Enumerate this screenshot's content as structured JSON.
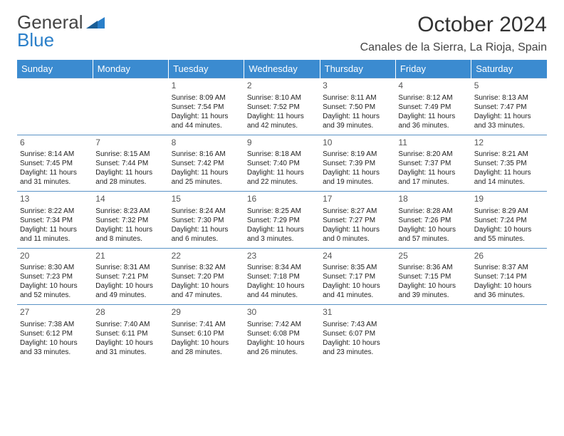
{
  "logo": {
    "line1": "General",
    "line2": "Blue"
  },
  "title": "October 2024",
  "location": "Canales de la Sierra, La Rioja, Spain",
  "colors": {
    "header_bg": "#3b8bd0",
    "header_text": "#ffffff",
    "row_border": "#5a93c6",
    "logo_blue": "#2a7fc9",
    "text": "#222222",
    "daynum": "#555555",
    "background": "#ffffff"
  },
  "fonts": {
    "title_size": 30,
    "location_size": 16,
    "header_size": 13,
    "cell_size": 10,
    "daynum_size": 12
  },
  "day_headers": [
    "Sunday",
    "Monday",
    "Tuesday",
    "Wednesday",
    "Thursday",
    "Friday",
    "Saturday"
  ],
  "weeks": [
    [
      {
        "day": "",
        "sunrise": "",
        "sunset": "",
        "daylight": ""
      },
      {
        "day": "",
        "sunrise": "",
        "sunset": "",
        "daylight": ""
      },
      {
        "day": "1",
        "sunrise": "Sunrise: 8:09 AM",
        "sunset": "Sunset: 7:54 PM",
        "daylight": "Daylight: 11 hours and 44 minutes."
      },
      {
        "day": "2",
        "sunrise": "Sunrise: 8:10 AM",
        "sunset": "Sunset: 7:52 PM",
        "daylight": "Daylight: 11 hours and 42 minutes."
      },
      {
        "day": "3",
        "sunrise": "Sunrise: 8:11 AM",
        "sunset": "Sunset: 7:50 PM",
        "daylight": "Daylight: 11 hours and 39 minutes."
      },
      {
        "day": "4",
        "sunrise": "Sunrise: 8:12 AM",
        "sunset": "Sunset: 7:49 PM",
        "daylight": "Daylight: 11 hours and 36 minutes."
      },
      {
        "day": "5",
        "sunrise": "Sunrise: 8:13 AM",
        "sunset": "Sunset: 7:47 PM",
        "daylight": "Daylight: 11 hours and 33 minutes."
      }
    ],
    [
      {
        "day": "6",
        "sunrise": "Sunrise: 8:14 AM",
        "sunset": "Sunset: 7:45 PM",
        "daylight": "Daylight: 11 hours and 31 minutes."
      },
      {
        "day": "7",
        "sunrise": "Sunrise: 8:15 AM",
        "sunset": "Sunset: 7:44 PM",
        "daylight": "Daylight: 11 hours and 28 minutes."
      },
      {
        "day": "8",
        "sunrise": "Sunrise: 8:16 AM",
        "sunset": "Sunset: 7:42 PM",
        "daylight": "Daylight: 11 hours and 25 minutes."
      },
      {
        "day": "9",
        "sunrise": "Sunrise: 8:18 AM",
        "sunset": "Sunset: 7:40 PM",
        "daylight": "Daylight: 11 hours and 22 minutes."
      },
      {
        "day": "10",
        "sunrise": "Sunrise: 8:19 AM",
        "sunset": "Sunset: 7:39 PM",
        "daylight": "Daylight: 11 hours and 19 minutes."
      },
      {
        "day": "11",
        "sunrise": "Sunrise: 8:20 AM",
        "sunset": "Sunset: 7:37 PM",
        "daylight": "Daylight: 11 hours and 17 minutes."
      },
      {
        "day": "12",
        "sunrise": "Sunrise: 8:21 AM",
        "sunset": "Sunset: 7:35 PM",
        "daylight": "Daylight: 11 hours and 14 minutes."
      }
    ],
    [
      {
        "day": "13",
        "sunrise": "Sunrise: 8:22 AM",
        "sunset": "Sunset: 7:34 PM",
        "daylight": "Daylight: 11 hours and 11 minutes."
      },
      {
        "day": "14",
        "sunrise": "Sunrise: 8:23 AM",
        "sunset": "Sunset: 7:32 PM",
        "daylight": "Daylight: 11 hours and 8 minutes."
      },
      {
        "day": "15",
        "sunrise": "Sunrise: 8:24 AM",
        "sunset": "Sunset: 7:30 PM",
        "daylight": "Daylight: 11 hours and 6 minutes."
      },
      {
        "day": "16",
        "sunrise": "Sunrise: 8:25 AM",
        "sunset": "Sunset: 7:29 PM",
        "daylight": "Daylight: 11 hours and 3 minutes."
      },
      {
        "day": "17",
        "sunrise": "Sunrise: 8:27 AM",
        "sunset": "Sunset: 7:27 PM",
        "daylight": "Daylight: 11 hours and 0 minutes."
      },
      {
        "day": "18",
        "sunrise": "Sunrise: 8:28 AM",
        "sunset": "Sunset: 7:26 PM",
        "daylight": "Daylight: 10 hours and 57 minutes."
      },
      {
        "day": "19",
        "sunrise": "Sunrise: 8:29 AM",
        "sunset": "Sunset: 7:24 PM",
        "daylight": "Daylight: 10 hours and 55 minutes."
      }
    ],
    [
      {
        "day": "20",
        "sunrise": "Sunrise: 8:30 AM",
        "sunset": "Sunset: 7:23 PM",
        "daylight": "Daylight: 10 hours and 52 minutes."
      },
      {
        "day": "21",
        "sunrise": "Sunrise: 8:31 AM",
        "sunset": "Sunset: 7:21 PM",
        "daylight": "Daylight: 10 hours and 49 minutes."
      },
      {
        "day": "22",
        "sunrise": "Sunrise: 8:32 AM",
        "sunset": "Sunset: 7:20 PM",
        "daylight": "Daylight: 10 hours and 47 minutes."
      },
      {
        "day": "23",
        "sunrise": "Sunrise: 8:34 AM",
        "sunset": "Sunset: 7:18 PM",
        "daylight": "Daylight: 10 hours and 44 minutes."
      },
      {
        "day": "24",
        "sunrise": "Sunrise: 8:35 AM",
        "sunset": "Sunset: 7:17 PM",
        "daylight": "Daylight: 10 hours and 41 minutes."
      },
      {
        "day": "25",
        "sunrise": "Sunrise: 8:36 AM",
        "sunset": "Sunset: 7:15 PM",
        "daylight": "Daylight: 10 hours and 39 minutes."
      },
      {
        "day": "26",
        "sunrise": "Sunrise: 8:37 AM",
        "sunset": "Sunset: 7:14 PM",
        "daylight": "Daylight: 10 hours and 36 minutes."
      }
    ],
    [
      {
        "day": "27",
        "sunrise": "Sunrise: 7:38 AM",
        "sunset": "Sunset: 6:12 PM",
        "daylight": "Daylight: 10 hours and 33 minutes."
      },
      {
        "day": "28",
        "sunrise": "Sunrise: 7:40 AM",
        "sunset": "Sunset: 6:11 PM",
        "daylight": "Daylight: 10 hours and 31 minutes."
      },
      {
        "day": "29",
        "sunrise": "Sunrise: 7:41 AM",
        "sunset": "Sunset: 6:10 PM",
        "daylight": "Daylight: 10 hours and 28 minutes."
      },
      {
        "day": "30",
        "sunrise": "Sunrise: 7:42 AM",
        "sunset": "Sunset: 6:08 PM",
        "daylight": "Daylight: 10 hours and 26 minutes."
      },
      {
        "day": "31",
        "sunrise": "Sunrise: 7:43 AM",
        "sunset": "Sunset: 6:07 PM",
        "daylight": "Daylight: 10 hours and 23 minutes."
      },
      {
        "day": "",
        "sunrise": "",
        "sunset": "",
        "daylight": ""
      },
      {
        "day": "",
        "sunrise": "",
        "sunset": "",
        "daylight": ""
      }
    ]
  ]
}
